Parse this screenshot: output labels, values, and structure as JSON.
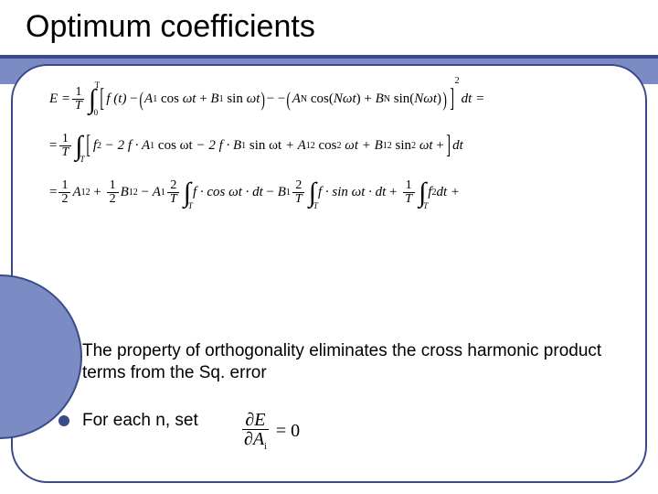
{
  "slide": {
    "title": "Optimum coefficients",
    "colors": {
      "background_band": "#7b8bc4",
      "frame_border": "#3a4a8a",
      "bullet_dot": "#3a4a8a",
      "underline": "#3a4a8a",
      "page_bg": "#ffffff",
      "text": "#000000"
    },
    "title_fontsize": 34,
    "body_fontsize": 19,
    "eq_fontsize": 15
  },
  "equations": {
    "line1": {
      "lhs": "E =",
      "frac_num": "1",
      "frac_den": "T",
      "int_upper": "T",
      "int_lower": "0",
      "inner_f": "f (t)",
      "minus": "−",
      "A1": "A",
      "A1_sub": "1",
      "cos": "cos",
      "omega_t": "ωt",
      "plus": "+",
      "B1": "B",
      "B1_sub": "1",
      "sin": "sin",
      "ellipsis": "−  −",
      "AN": "A",
      "AN_sub": "N",
      "cosN": "cos(",
      "N_omega_t": "Nωt",
      "cparen": ")",
      "BN": "B",
      "BN_sub": "N",
      "sinN": "sin(",
      "sq": "2",
      "dt_eq": "dt ="
    },
    "line2": {
      "eq": "=",
      "frac_num": "1",
      "frac_den": "T",
      "f2": "f",
      "f2_sup": "2",
      "m2fA": "− 2 f · A",
      "sub1": "1",
      "cos_wt": "cos ωt",
      "m2fB": "− 2 f · B",
      "sin_wt": "sin ωt",
      "pA2": "+ A",
      "sup2": "2",
      "cos2": "cos",
      "wt": "ωt",
      "pB2": "+ B",
      "sin2": "sin",
      "plus_ell": "+ ",
      "dt": "dt"
    },
    "line3": {
      "eq": "=",
      "half_num": "1",
      "half_den": "2",
      "A1": "A",
      "sub1": "1",
      "sup2": "2",
      "plus": "+",
      "B1": "B",
      "minus": "−",
      "twoT_num": "2",
      "twoT_den": "T",
      "f_cos_dt": "f · cos ωt · dt",
      "f_sin_dt": "f · sin ωt · dt",
      "oneT_num": "1",
      "oneT_den": "T",
      "f2dt": "f",
      "dt_tail": "dt + "
    }
  },
  "bullets": [
    {
      "text": "The property of orthogonality eliminates the cross harmonic product terms from the Sq. error"
    },
    {
      "text": "For each n, set",
      "eq": {
        "partial": "∂",
        "E": "E",
        "A": "A",
        "i": "i",
        "equals_zero": "= 0"
      }
    }
  ]
}
